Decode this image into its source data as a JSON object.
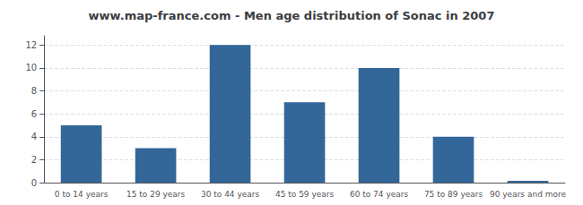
{
  "chart_data": {
    "type": "bar",
    "title": "www.map-france.com - Men age distribution of Sonac in 2007",
    "categories": [
      "0 to 14 years",
      "15 to 29 years",
      "30 to 44 years",
      "45 to 59 years",
      "60 to 74 years",
      "75 to 89 years",
      "90 years and more"
    ],
    "values": [
      5,
      3,
      12,
      7,
      10,
      4,
      0.15
    ],
    "color": "#336699",
    "ylim": [
      0,
      12.8
    ],
    "yticks": [
      0,
      2,
      4,
      6,
      8,
      10,
      12
    ],
    "grid": true
  }
}
